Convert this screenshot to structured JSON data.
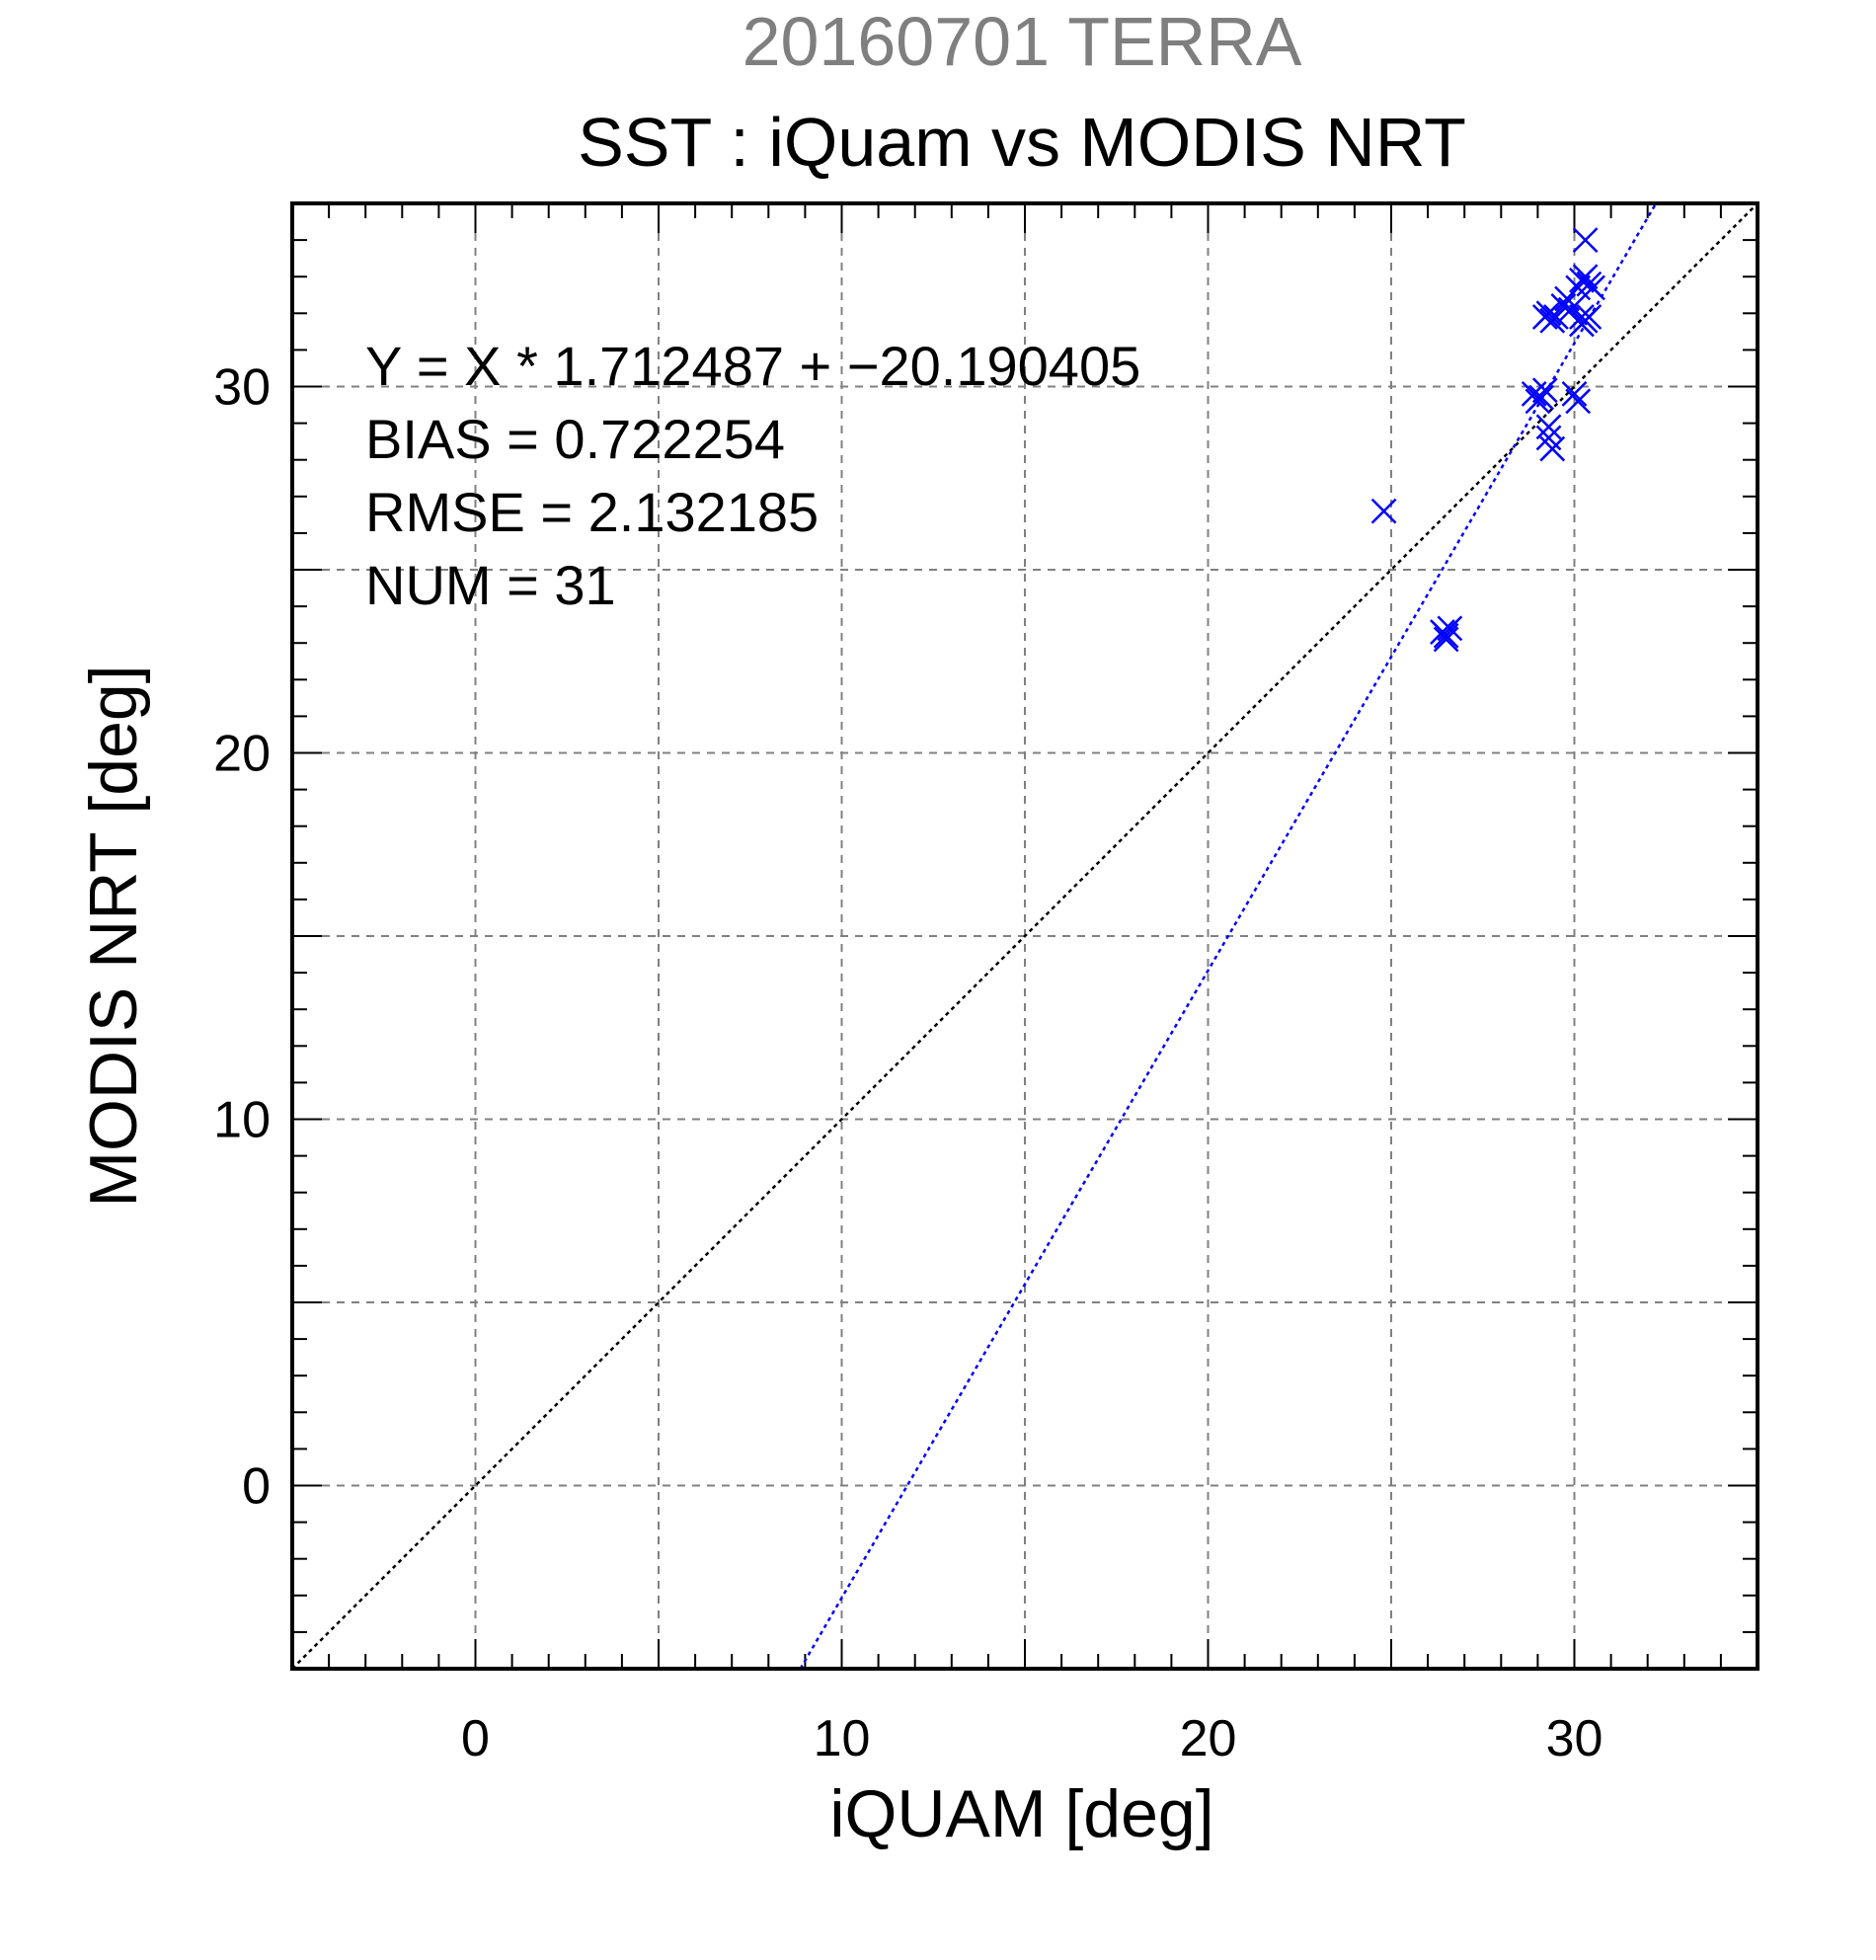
{
  "chart_data": {
    "type": "scatter",
    "supertitle": "20160701 TERRA",
    "title": "SST : iQuam vs MODIS NRT",
    "xlabel": "iQUAM [deg]",
    "ylabel": "MODIS NRT [deg]",
    "xlim": [
      -5,
      35
    ],
    "ylim": [
      -5,
      35
    ],
    "xticks": [
      0,
      10,
      20,
      30
    ],
    "yticks": [
      0,
      10,
      20,
      30
    ],
    "xtick_labels": [
      "0",
      "10",
      "20",
      "30"
    ],
    "ytick_labels": [
      "0",
      "10",
      "20",
      "30"
    ],
    "grid_step": 5,
    "minor_step": 1,
    "grid": true,
    "stats": [
      "Y = X * 1.712487 + −20.190405",
      "BIAS = 0.722254",
      "RMSE = 2.132185",
      "NUM = 31"
    ],
    "fit": {
      "slope": 1.712487,
      "intercept": -20.190405,
      "color": "#0000ff"
    },
    "identity_line": {
      "color": "#000000"
    },
    "marker": "x",
    "point_color": "#0000ff",
    "points": [
      {
        "x": 24.8,
        "y": 26.6
      },
      {
        "x": 26.4,
        "y": 23.3
      },
      {
        "x": 26.5,
        "y": 23.2
      },
      {
        "x": 26.6,
        "y": 23.4
      },
      {
        "x": 26.5,
        "y": 23.1
      },
      {
        "x": 28.9,
        "y": 29.8
      },
      {
        "x": 29.0,
        "y": 29.6
      },
      {
        "x": 29.1,
        "y": 29.7
      },
      {
        "x": 29.2,
        "y": 29.9
      },
      {
        "x": 29.3,
        "y": 28.9
      },
      {
        "x": 29.3,
        "y": 28.6
      },
      {
        "x": 29.4,
        "y": 28.3
      },
      {
        "x": 29.2,
        "y": 31.9
      },
      {
        "x": 29.3,
        "y": 32.0
      },
      {
        "x": 29.4,
        "y": 31.8
      },
      {
        "x": 29.5,
        "y": 31.9
      },
      {
        "x": 29.7,
        "y": 32.2
      },
      {
        "x": 29.8,
        "y": 32.4
      },
      {
        "x": 29.9,
        "y": 32.1
      },
      {
        "x": 30.0,
        "y": 29.8
      },
      {
        "x": 30.1,
        "y": 29.6
      },
      {
        "x": 30.1,
        "y": 32.7
      },
      {
        "x": 30.2,
        "y": 32.9
      },
      {
        "x": 30.3,
        "y": 33.0
      },
      {
        "x": 30.3,
        "y": 34.0
      },
      {
        "x": 30.4,
        "y": 32.8
      },
      {
        "x": 30.5,
        "y": 32.7
      },
      {
        "x": 30.2,
        "y": 31.9
      },
      {
        "x": 30.3,
        "y": 31.8
      },
      {
        "x": 30.2,
        "y": 31.7
      },
      {
        "x": 30.4,
        "y": 31.9
      }
    ]
  }
}
